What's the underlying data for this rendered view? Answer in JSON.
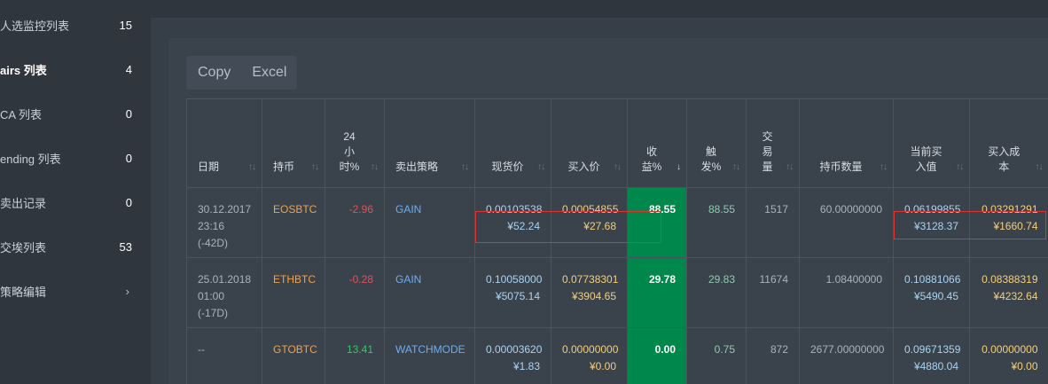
{
  "sidebar": {
    "items": [
      {
        "label": "人选监控列表",
        "count": "15"
      },
      {
        "label": "airs 列表",
        "count": "4",
        "active": true
      },
      {
        "label": "CA 列表",
        "count": "0"
      },
      {
        "label": "ending 列表",
        "count": "0"
      },
      {
        "label": "卖出记录",
        "count": "0"
      },
      {
        "label": "交埃列表",
        "count": "53"
      },
      {
        "label": "策略编辑",
        "count": "",
        "chevron": "chevron-right-icon"
      }
    ]
  },
  "toolbar": {
    "copy_label": "Copy",
    "excel_label": "Excel"
  },
  "table": {
    "headers": [
      {
        "text": "日期",
        "sort": "↑↓"
      },
      {
        "text": "持币",
        "sort": "↑↓"
      },
      {
        "text": "24\n小\n时%",
        "sort": "↑↓"
      },
      {
        "text": "卖出策略",
        "sort": "↑↓"
      },
      {
        "text": "现货价",
        "sort": "↑↓"
      },
      {
        "text": "买入价",
        "sort": "↑↓"
      },
      {
        "text": "收\n益%",
        "sort": "↓"
      },
      {
        "text": "触\n发%",
        "sort": "↑↓"
      },
      {
        "text": "交\n易\n量",
        "sort": "↑↓"
      },
      {
        "text": "持币数量",
        "sort": "↑↓"
      },
      {
        "text": "当前买\n入值",
        "sort": "↑↓"
      },
      {
        "text": "买入成\n本",
        "sort": "↑↓"
      }
    ],
    "rows": [
      {
        "date": "30.12.2017\n23:16\n(-42D)",
        "coin": "EOSBTC",
        "change24h": "-2.96",
        "change_sign": "neg",
        "strategy": "GAIN",
        "spot": "0.00103538",
        "spot_cny": "¥52.24",
        "buy": "0.00054855",
        "buy_cny": "¥27.68",
        "profit": "88.55",
        "trigger": "88.55",
        "volume": "1517",
        "amount": "60.00000000",
        "cur_value": "0.06199855",
        "cur_value_cny": "¥3128.37",
        "cost": "0.03291291",
        "cost_cny": "¥1660.74"
      },
      {
        "date": "25.01.2018\n01:00\n(-17D)",
        "coin": "ETHBTC",
        "change24h": "-0.28",
        "change_sign": "neg",
        "strategy": "GAIN",
        "spot": "0.10058000",
        "spot_cny": "¥5075.14",
        "buy": "0.07738301",
        "buy_cny": "¥3904.65",
        "profit": "29.78",
        "trigger": "29.83",
        "volume": "11674",
        "amount": "1.08400000",
        "cur_value": "0.10881066",
        "cur_value_cny": "¥5490.45",
        "cost": "0.08388319",
        "cost_cny": "¥4232.64"
      },
      {
        "date": "--",
        "coin": "GTOBTC",
        "change24h": "13.41",
        "change_sign": "pos",
        "strategy": "WATCHMODE",
        "spot": "0.00003620",
        "spot_cny": "¥1.83",
        "buy": "0.00000000",
        "buy_cny": "¥0.00",
        "profit": "0.00",
        "trigger": "0.75",
        "volume": "872",
        "amount": "2677.00000000",
        "cur_value": "0.09671359",
        "cur_value_cny": "¥4880.04",
        "cost": "0.00000000",
        "cost_cny": "¥0.00"
      }
    ]
  },
  "colors": {
    "background": "#2f363e",
    "panel": "#3a424b",
    "profit_cell": "#00874c",
    "coin": "#f0a24a",
    "strategy": "#6aaef2",
    "negative": "#e0525c",
    "positive": "#3cc46b",
    "highlight_box": "#e0322f"
  }
}
